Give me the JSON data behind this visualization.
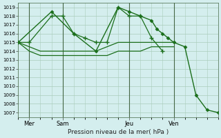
{
  "title": "Pression niveau de la mer( hPa )",
  "bg_color": "#d4eeee",
  "grid_color": "#aaccbb",
  "line_color": "#1a6e1a",
  "vline_color": "#446644",
  "ylim": [
    1006.5,
    1019.5
  ],
  "yticks": [
    1007,
    1008,
    1009,
    1010,
    1011,
    1012,
    1013,
    1014,
    1015,
    1016,
    1017,
    1018,
    1019
  ],
  "day_labels": [
    "Mer",
    "Sam",
    "Jeu",
    "Ven"
  ],
  "day_positions": [
    1,
    4,
    10,
    14
  ],
  "xlim": [
    0,
    18
  ],
  "series_plus": {
    "x": [
      0,
      1,
      3,
      4,
      5,
      6,
      7,
      8,
      9,
      10,
      11,
      12,
      13
    ],
    "y": [
      1015,
      1015,
      1018,
      1018,
      1016,
      1015.5,
      1015,
      1015,
      1019,
      1018,
      1018,
      1015.5,
      1014
    ]
  },
  "series_flat1": {
    "x": [
      0,
      1,
      2,
      3,
      4,
      5,
      6,
      7,
      8,
      9,
      10,
      11,
      12,
      13,
      14
    ],
    "y": [
      1015,
      1014.5,
      1014,
      1014,
      1014,
      1014,
      1014,
      1014,
      1014.5,
      1015,
      1015,
      1015,
      1015,
      1015,
      1015
    ]
  },
  "series_flat2": {
    "x": [
      0,
      1,
      2,
      3,
      4,
      5,
      6,
      7,
      8,
      9,
      10,
      11,
      12,
      13,
      14
    ],
    "y": [
      1015,
      1014,
      1013.5,
      1013.5,
      1013.5,
      1013.5,
      1013.5,
      1013.5,
      1013.5,
      1014,
      1014,
      1014,
      1014.5,
      1014.5,
      1014.5
    ]
  },
  "series_diamond": {
    "x": [
      0,
      3,
      5,
      7,
      9,
      10,
      11,
      12,
      12.5,
      13,
      13.5,
      14,
      15,
      16,
      17,
      18
    ],
    "y": [
      1015,
      1018.5,
      1016,
      1014,
      1019,
      1018.5,
      1018,
      1017.5,
      1016.5,
      1016,
      1015.5,
      1015,
      1014.5,
      1009,
      1007.3,
      1007
    ]
  }
}
